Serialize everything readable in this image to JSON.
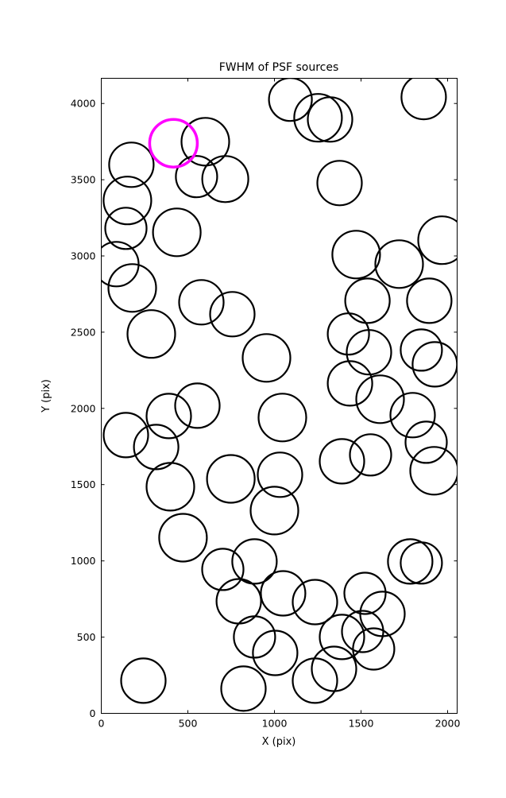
{
  "chart_data": {
    "type": "scatter",
    "title": "FWHM of PSF sources",
    "xlabel": "X (pix)",
    "ylabel": "Y (pix)",
    "xlim": [
      0,
      2055
    ],
    "ylim": [
      0,
      4165
    ],
    "xticks": [
      0,
      500,
      1000,
      1500,
      2000
    ],
    "yticks": [
      0,
      500,
      1000,
      1500,
      2000,
      2500,
      3000,
      3500,
      4000
    ],
    "legend": "none",
    "grid": false,
    "marker_style": "open-circle",
    "marker_color": "#000000",
    "highlight_color": "#ff00ff",
    "points": [
      [
        1092,
        4026,
        27
      ],
      [
        1252,
        3906,
        30
      ],
      [
        1321,
        3895,
        28
      ],
      [
        1862,
        4042,
        28
      ],
      [
        601,
        3749,
        30
      ],
      [
        716,
        3504,
        29
      ],
      [
        550,
        3520,
        26
      ],
      [
        174,
        3598,
        28
      ],
      [
        151,
        3364,
        30
      ],
      [
        1376,
        3478,
        28
      ],
      [
        436,
        3155,
        30
      ],
      [
        142,
        3181,
        26
      ],
      [
        87,
        2946,
        28
      ],
      [
        179,
        2790,
        30
      ],
      [
        1472,
        3009,
        30
      ],
      [
        1720,
        2946,
        30
      ],
      [
        1968,
        3103,
        30
      ],
      [
        1894,
        2706,
        28
      ],
      [
        1537,
        2706,
        28
      ],
      [
        578,
        2696,
        28
      ],
      [
        757,
        2618,
        28
      ],
      [
        289,
        2488,
        30
      ],
      [
        1427,
        2488,
        26
      ],
      [
        1546,
        2368,
        28
      ],
      [
        1848,
        2383,
        26
      ],
      [
        1926,
        2289,
        28
      ],
      [
        954,
        2331,
        30
      ],
      [
        1436,
        2164,
        28
      ],
      [
        1610,
        2060,
        30
      ],
      [
        1798,
        1956,
        28
      ],
      [
        555,
        2018,
        28
      ],
      [
        390,
        1950,
        28
      ],
      [
        1046,
        1940,
        30
      ],
      [
        142,
        1825,
        28
      ],
      [
        317,
        1747,
        28
      ],
      [
        1876,
        1778,
        26
      ],
      [
        1390,
        1653,
        28
      ],
      [
        1555,
        1695,
        26
      ],
      [
        1922,
        1591,
        30
      ],
      [
        748,
        1538,
        30
      ],
      [
        1032,
        1565,
        28
      ],
      [
        1000,
        1330,
        30
      ],
      [
        399,
        1486,
        30
      ],
      [
        472,
        1152,
        30
      ],
      [
        702,
        944,
        26
      ],
      [
        885,
        996,
        28
      ],
      [
        1784,
        996,
        28
      ],
      [
        1848,
        986,
        26
      ],
      [
        794,
        735,
        28
      ],
      [
        1050,
        787,
        28
      ],
      [
        1234,
        730,
        28
      ],
      [
        1523,
        787,
        26
      ],
      [
        1624,
        652,
        28
      ],
      [
        885,
        501,
        26
      ],
      [
        1004,
        396,
        28
      ],
      [
        1390,
        501,
        28
      ],
      [
        1509,
        537,
        26
      ],
      [
        1573,
        422,
        26
      ],
      [
        1344,
        292,
        28
      ],
      [
        1234,
        214,
        28
      ],
      [
        243,
        214,
        28
      ],
      [
        821,
        162,
        28
      ]
    ],
    "highlight_point": [
      417,
      3739,
      30
    ]
  }
}
